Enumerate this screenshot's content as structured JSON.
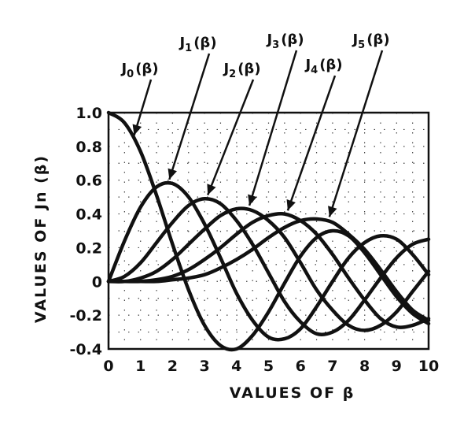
{
  "chart_data": {
    "type": "line",
    "title": "",
    "xlabel": "VALUES OF β",
    "ylabel": "VALUES OF Jn (β)",
    "xlim": [
      0,
      10
    ],
    "ylim": [
      -0.4,
      1.0
    ],
    "grid": true,
    "x_ticks": [
      "0",
      "1",
      "2",
      "3",
      "4",
      "5",
      "6",
      "7",
      "8",
      "9",
      "10"
    ],
    "y_ticks": [
      "1.0",
      "0.8",
      "0.6",
      "0.4",
      "0.2",
      "0",
      "-0.2",
      "-0.4"
    ],
    "x": [
      0,
      0.5,
      1,
      1.5,
      2,
      2.5,
      3,
      3.5,
      4,
      4.5,
      5,
      5.5,
      6,
      6.5,
      7,
      7.5,
      8,
      8.5,
      9,
      9.5,
      10
    ],
    "series": [
      {
        "name": "J0(β)",
        "values": [
          1.0,
          0.94,
          0.77,
          0.51,
          0.22,
          -0.05,
          -0.26,
          -0.38,
          -0.4,
          -0.32,
          -0.18,
          -0.01,
          0.15,
          0.26,
          0.3,
          0.27,
          0.17,
          0.04,
          -0.09,
          -0.19,
          -0.25
        ]
      },
      {
        "name": "J1(β)",
        "values": [
          0.0,
          0.24,
          0.44,
          0.56,
          0.58,
          0.5,
          0.34,
          0.14,
          -0.07,
          -0.23,
          -0.33,
          -0.34,
          -0.28,
          -0.15,
          0.0,
          0.14,
          0.23,
          0.27,
          0.25,
          0.16,
          0.04
        ]
      },
      {
        "name": "J2(β)",
        "values": [
          0.0,
          0.03,
          0.11,
          0.23,
          0.35,
          0.45,
          0.49,
          0.46,
          0.36,
          0.22,
          0.05,
          -0.12,
          -0.24,
          -0.31,
          -0.3,
          -0.23,
          -0.11,
          0.02,
          0.14,
          0.22,
          0.25
        ]
      },
      {
        "name": "J3(β)",
        "values": [
          0.0,
          0.0,
          0.02,
          0.06,
          0.13,
          0.22,
          0.31,
          0.39,
          0.43,
          0.42,
          0.36,
          0.26,
          0.11,
          -0.05,
          -0.17,
          -0.26,
          -0.29,
          -0.26,
          -0.18,
          -0.06,
          0.06
        ]
      },
      {
        "name": "J4(β)",
        "values": [
          0.0,
          0.0,
          0.0,
          0.01,
          0.03,
          0.07,
          0.13,
          0.2,
          0.28,
          0.35,
          0.39,
          0.4,
          0.36,
          0.28,
          0.16,
          0.02,
          -0.11,
          -0.22,
          -0.27,
          -0.26,
          -0.22
        ]
      },
      {
        "name": "J5(β)",
        "values": [
          0.0,
          0.0,
          0.0,
          0.0,
          0.01,
          0.02,
          0.04,
          0.08,
          0.13,
          0.19,
          0.26,
          0.32,
          0.36,
          0.37,
          0.35,
          0.28,
          0.19,
          0.07,
          -0.06,
          -0.17,
          -0.23
        ]
      }
    ],
    "annotations": [
      {
        "label_main": "J",
        "label_sub": "0",
        "label_arg": "(β)",
        "series": "J0(β)",
        "points_to_x": 0.8
      },
      {
        "label_main": "J",
        "label_sub": "1",
        "label_arg": "(β)",
        "series": "J1(β)",
        "points_to_x": 1.9
      },
      {
        "label_main": "J",
        "label_sub": "2",
        "label_arg": "(β)",
        "series": "J2(β)",
        "points_to_x": 3.1
      },
      {
        "label_main": "J",
        "label_sub": "3",
        "label_arg": "(β)",
        "series": "J3(β)",
        "points_to_x": 4.4
      },
      {
        "label_main": "J",
        "label_sub": "4",
        "label_arg": "(β)",
        "series": "J4(β)",
        "points_to_x": 5.6
      },
      {
        "label_main": "J",
        "label_sub": "5",
        "label_arg": "(β)",
        "series": "J5(β)",
        "points_to_x": 6.9
      }
    ]
  }
}
